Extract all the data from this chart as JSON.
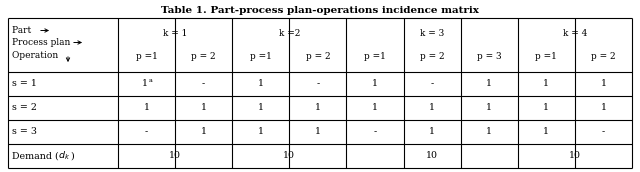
{
  "title": "Table 1. Part-process plan-operations incidence matrix",
  "title_fontsize": 7.5,
  "bg_color": "#ffffff",
  "border_color": "#000000",
  "text_color": "#000000",
  "figsize": [
    6.4,
    1.72
  ],
  "dpi": 100,
  "header_k": [
    "k = 1",
    "k =2",
    "k = 3",
    "k = 4"
  ],
  "header_p": [
    [
      "p =1",
      "p = 2"
    ],
    [
      "p =1",
      "p = 2"
    ],
    [
      "p =1",
      "p = 2",
      "p = 3"
    ],
    [
      "p =1",
      "p = 2"
    ]
  ],
  "cell_data": [
    [
      "1a",
      "-",
      "1",
      "-",
      "1",
      "-",
      "1",
      "1",
      "1"
    ],
    [
      "1",
      "1",
      "1",
      "1",
      "1",
      "1",
      "1",
      "1",
      "1"
    ],
    [
      "-",
      "1",
      "1",
      "1",
      "-",
      "1",
      "1",
      "1",
      "-"
    ]
  ],
  "demand_values": [
    "10",
    "10",
    "10",
    "10"
  ],
  "row_labels": [
    "s = 1",
    "s = 2",
    "s = 3"
  ],
  "font_family": "DejaVu Serif",
  "fs_hdr": 6.5,
  "fs_cell": 6.8,
  "fs_title": 7.5
}
